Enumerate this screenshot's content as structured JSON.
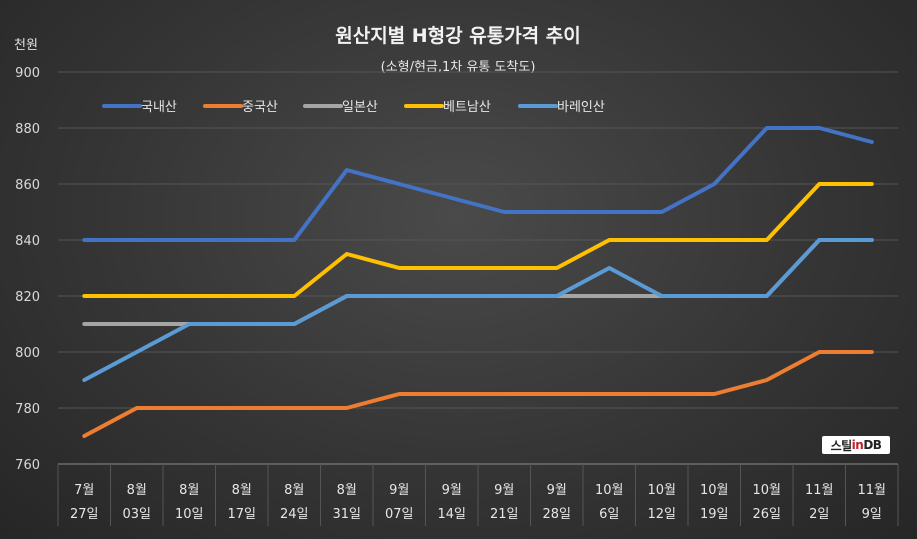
{
  "chart_data": {
    "type": "line",
    "title": "원산지별 H형강 유통가격 추이",
    "subtitle": "(소형/현금,1차 유통 도착도)",
    "ylabel": "천원",
    "ylim": [
      760,
      900
    ],
    "yticks": [
      760,
      780,
      800,
      820,
      840,
      860,
      880,
      900
    ],
    "grid": true,
    "legend": "top-left",
    "categories": [
      [
        "7월",
        "27일"
      ],
      [
        "8월",
        "03일"
      ],
      [
        "8월",
        "10일"
      ],
      [
        "8월",
        "17일"
      ],
      [
        "8월",
        "24일"
      ],
      [
        "8월",
        "31일"
      ],
      [
        "9월",
        "07일"
      ],
      [
        "9월",
        "14일"
      ],
      [
        "9월",
        "21일"
      ],
      [
        "9월",
        "28일"
      ],
      [
        "10월",
        "6일"
      ],
      [
        "10월",
        "12일"
      ],
      [
        "10월",
        "19일"
      ],
      [
        "10월",
        "26일"
      ],
      [
        "11월",
        "2일"
      ],
      [
        "11월",
        "9일"
      ]
    ],
    "series": [
      {
        "name": "국내산",
        "color": "#4472c4",
        "values": [
          840,
          840,
          840,
          840,
          840,
          865,
          860,
          855,
          850,
          850,
          850,
          850,
          860,
          880,
          880,
          875
        ]
      },
      {
        "name": "중국산",
        "color": "#ed7d31",
        "values": [
          770,
          780,
          780,
          780,
          780,
          780,
          785,
          785,
          785,
          785,
          785,
          785,
          785,
          790,
          800,
          800
        ]
      },
      {
        "name": "일본산",
        "color": "#a5a5a5",
        "values": [
          810,
          810,
          810,
          810,
          810,
          820,
          820,
          820,
          820,
          820,
          820,
          820,
          820,
          820,
          840,
          840
        ]
      },
      {
        "name": "베트남산",
        "color": "#ffc000",
        "values": [
          820,
          820,
          820,
          820,
          820,
          835,
          830,
          830,
          830,
          830,
          840,
          840,
          840,
          840,
          860,
          860
        ]
      },
      {
        "name": "바레인산",
        "color": "#5b9bd5",
        "values": [
          790,
          800,
          810,
          810,
          810,
          820,
          820,
          820,
          820,
          820,
          830,
          820,
          820,
          820,
          840,
          840
        ]
      }
    ]
  },
  "watermark": {
    "prefix": "스틸",
    "accent": "in",
    "suffix": " DB"
  }
}
